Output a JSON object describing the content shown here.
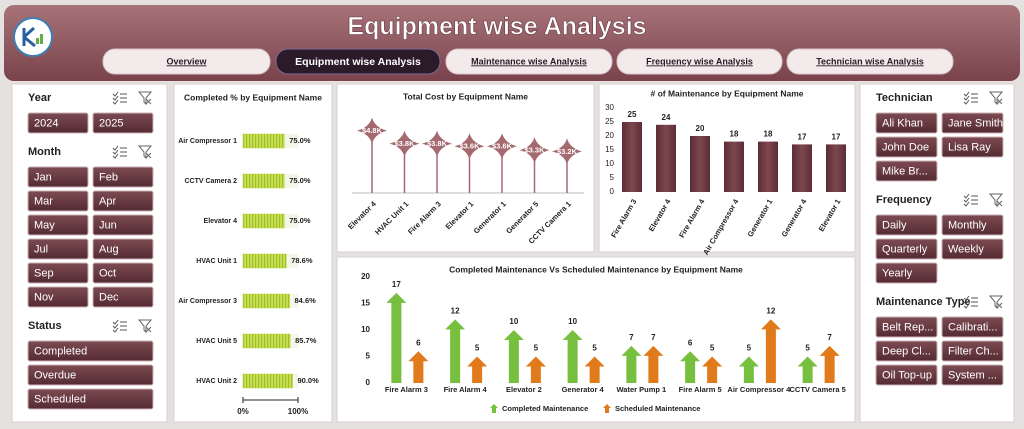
{
  "header": {
    "title": "Equipment wise Analysis"
  },
  "nav": {
    "tabs": [
      "Overview",
      "Equipment wise Analysis",
      "Maintenance wise Analysis",
      "Frequency wise Analysis",
      "Technician wise Analysis"
    ],
    "active": 1
  },
  "slicers": {
    "left": [
      {
        "title": "Year",
        "items": [
          "2024",
          "2025"
        ]
      },
      {
        "title": "Month",
        "items": [
          "Jan",
          "Feb",
          "Mar",
          "Apr",
          "May",
          "Jun",
          "Jul",
          "Aug",
          "Sep",
          "Oct",
          "Nov",
          "Dec"
        ]
      },
      {
        "title": "Status",
        "items": [
          "Completed",
          "Overdue",
          "Scheduled"
        ]
      }
    ],
    "right": [
      {
        "title": "Technician",
        "items": [
          "Ali Khan",
          "Jane Smith",
          "John Doe",
          "Lisa Ray",
          "Mike Br..."
        ]
      },
      {
        "title": "Frequency",
        "items": [
          "Daily",
          "Monthly",
          "Quarterly",
          "Weekly",
          "Yearly"
        ]
      },
      {
        "title": "Maintenance Type",
        "items": [
          "Belt Rep...",
          "Calibrati...",
          "Deep Cl...",
          "Filter Ch...",
          "Oil Top-up",
          "System ..."
        ]
      }
    ]
  },
  "chart_data": [
    {
      "type": "hbar",
      "title": "Completed % by Equipment Name",
      "categories": [
        "Air Compressor 1",
        "CCTV Camera 2",
        "Elevator 4",
        "HVAC Unit 1",
        "Air Compressor 3",
        "HVAC Unit 5",
        "HVAC Unit 2"
      ],
      "values": [
        75,
        75,
        75,
        78.6,
        84.6,
        85.7,
        90
      ],
      "value_labels": [
        "75.0%",
        "75.0%",
        "75.0%",
        "78.6%",
        "84.6%",
        "85.7%",
        "90.0%"
      ],
      "xlim": [
        0,
        100
      ],
      "xticks": [
        {
          "value": 0,
          "label": "0%"
        },
        {
          "value": 100,
          "label": "100%"
        }
      ],
      "color": "#b5d334"
    },
    {
      "type": "lollipop",
      "title": "Total Cost by Equipment Name",
      "categories": [
        "Elevator 4",
        "HVAC Unit 1",
        "Fire Alarm 3",
        "Elevator 1",
        "Generator 1",
        "Generator 5",
        "CCTV Camera 1"
      ],
      "values": [
        4800,
        3800,
        3800,
        3600,
        3600,
        3300,
        3200
      ],
      "value_labels": [
        "$4.8K",
        "$3.8K",
        "$3.8K",
        "$3.6K",
        "$3.6K",
        "$3.3K",
        "$3.2K"
      ],
      "color": "#a56a70"
    },
    {
      "type": "bar",
      "title": "# of Maintenance by Equipment Name",
      "categories": [
        "Fire Alarm 3",
        "Elevator 4",
        "Fire Alarm 4",
        "Air Compressor 4",
        "Generator 1",
        "Generator 4",
        "Elevator 1"
      ],
      "values": [
        25,
        24,
        20,
        18,
        18,
        17,
        17
      ],
      "ylim": [
        0,
        30
      ],
      "yticks": [
        0,
        5,
        10,
        15,
        20,
        25,
        30
      ],
      "color": "#6e3a43"
    },
    {
      "type": "arrow-bar",
      "title": "Completed Maintenance Vs Scheduled Maintenance by Equipment Name",
      "categories": [
        "Fire Alarm 3",
        "Fire Alarm 4",
        "Elevator 2",
        "Generator 4",
        "Water Pump 1",
        "Fire Alarm 5",
        "Air Compressor 4",
        "CCTV Camera 5"
      ],
      "series": [
        {
          "name": "Completed Maintenance",
          "color": "#76bf3f",
          "values": [
            17,
            12,
            10,
            10,
            7,
            6,
            5,
            5
          ]
        },
        {
          "name": "Scheduled Maintenance",
          "color": "#e07a1b",
          "values": [
            6,
            5,
            5,
            5,
            7,
            5,
            12,
            7
          ]
        }
      ],
      "ylim": [
        0,
        20
      ],
      "yticks": [
        0,
        5,
        10,
        15,
        20
      ],
      "legend": "bottom"
    }
  ]
}
